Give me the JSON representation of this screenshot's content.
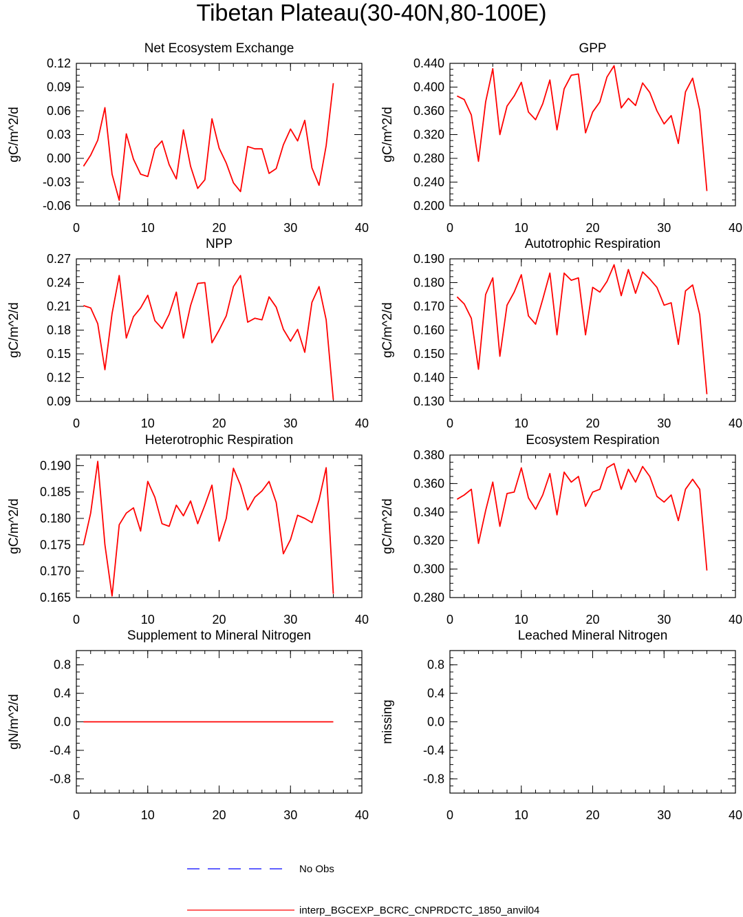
{
  "figure_title": "Tibetan Plateau(30-40N,80-100E)",
  "colors": {
    "model": "#ff0000",
    "obs": "#0000ff"
  },
  "legend": {
    "obs_label": "No Obs",
    "model_label": "interp_BGCEXP_BCRC_CNPRDCTC_1850_anvil04"
  },
  "chart_data": [
    {
      "type": "line",
      "title": "Net Ecosystem Exchange",
      "ylabel": "gC/m^2/d",
      "xlim": [
        0,
        40
      ],
      "ylim": [
        -0.06,
        0.12
      ],
      "xticks": [
        "0",
        "10",
        "20",
        "30",
        "40"
      ],
      "yticks": [
        "-0.06",
        "-0.03",
        "0.00",
        "0.03",
        "0.06",
        "0.09",
        "0.12"
      ],
      "x": [
        1,
        2,
        3,
        4,
        5,
        6,
        7,
        8,
        9,
        10,
        11,
        12,
        13,
        14,
        15,
        16,
        17,
        18,
        19,
        20,
        21,
        22,
        23,
        24,
        25,
        26,
        27,
        28,
        29,
        30,
        31,
        32,
        33,
        34,
        35,
        36
      ],
      "values": [
        -0.01,
        0.004,
        0.023,
        0.064,
        -0.02,
        -0.053,
        0.031,
        -0.001,
        -0.02,
        -0.023,
        0.012,
        0.022,
        -0.008,
        -0.026,
        0.036,
        -0.01,
        -0.038,
        -0.027,
        0.05,
        0.013,
        -0.006,
        -0.031,
        -0.042,
        0.015,
        0.012,
        0.012,
        -0.019,
        -0.013,
        0.017,
        0.037,
        0.022,
        0.048,
        -0.012,
        -0.034,
        0.016,
        0.095
      ]
    },
    {
      "type": "line",
      "title": "GPP",
      "ylabel": "gC/m^2/d",
      "xlim": [
        0,
        40
      ],
      "ylim": [
        0.2,
        0.44
      ],
      "xticks": [
        "0",
        "10",
        "20",
        "30",
        "40"
      ],
      "yticks": [
        "0.200",
        "0.240",
        "0.280",
        "0.320",
        "0.360",
        "0.400",
        "0.440"
      ],
      "x": [
        1,
        2,
        3,
        4,
        5,
        6,
        7,
        8,
        9,
        10,
        11,
        12,
        13,
        14,
        15,
        16,
        17,
        18,
        19,
        20,
        21,
        22,
        23,
        24,
        25,
        26,
        27,
        28,
        29,
        30,
        31,
        32,
        33,
        34,
        35,
        36
      ],
      "values": [
        0.385,
        0.379,
        0.353,
        0.275,
        0.375,
        0.431,
        0.32,
        0.368,
        0.385,
        0.408,
        0.358,
        0.345,
        0.372,
        0.412,
        0.328,
        0.397,
        0.42,
        0.422,
        0.323,
        0.358,
        0.375,
        0.417,
        0.436,
        0.365,
        0.381,
        0.369,
        0.407,
        0.391,
        0.36,
        0.338,
        0.352,
        0.305,
        0.392,
        0.415,
        0.361,
        0.225
      ]
    },
    {
      "type": "line",
      "title": "NPP",
      "ylabel": "gC/m^2/d",
      "xlim": [
        0,
        40
      ],
      "ylim": [
        0.09,
        0.27
      ],
      "xticks": [
        "0",
        "10",
        "20",
        "30",
        "40"
      ],
      "yticks": [
        "0.09",
        "0.12",
        "0.15",
        "0.18",
        "0.21",
        "0.24",
        "0.27"
      ],
      "x": [
        1,
        2,
        3,
        4,
        5,
        6,
        7,
        8,
        9,
        10,
        11,
        12,
        13,
        14,
        15,
        16,
        17,
        18,
        19,
        20,
        21,
        22,
        23,
        24,
        25,
        26,
        27,
        28,
        29,
        30,
        31,
        32,
        33,
        34,
        35,
        36
      ],
      "values": [
        0.211,
        0.208,
        0.188,
        0.13,
        0.201,
        0.249,
        0.17,
        0.197,
        0.208,
        0.224,
        0.192,
        0.182,
        0.2,
        0.228,
        0.17,
        0.211,
        0.239,
        0.24,
        0.164,
        0.18,
        0.198,
        0.235,
        0.249,
        0.19,
        0.195,
        0.193,
        0.222,
        0.209,
        0.181,
        0.166,
        0.181,
        0.152,
        0.215,
        0.235,
        0.193,
        0.092
      ]
    },
    {
      "type": "line",
      "title": "Autotrophic Respiration",
      "ylabel": "gC/m^2/d",
      "xlim": [
        0,
        40
      ],
      "ylim": [
        0.13,
        0.19
      ],
      "xticks": [
        "0",
        "10",
        "20",
        "30",
        "40"
      ],
      "yticks": [
        "0.130",
        "0.140",
        "0.150",
        "0.160",
        "0.170",
        "0.180",
        "0.190"
      ],
      "x": [
        1,
        2,
        3,
        4,
        5,
        6,
        7,
        8,
        9,
        10,
        11,
        12,
        13,
        14,
        15,
        16,
        17,
        18,
        19,
        20,
        21,
        22,
        23,
        24,
        25,
        26,
        27,
        28,
        29,
        30,
        31,
        32,
        33,
        34,
        35,
        36
      ],
      "values": [
        0.174,
        0.171,
        0.165,
        0.1435,
        0.175,
        0.182,
        0.149,
        0.1705,
        0.176,
        0.1833,
        0.166,
        0.1625,
        0.173,
        0.184,
        0.158,
        0.184,
        0.181,
        0.182,
        0.158,
        0.178,
        0.176,
        0.1805,
        0.1875,
        0.1745,
        0.1855,
        0.1755,
        0.1845,
        0.1815,
        0.178,
        0.1705,
        0.1715,
        0.154,
        0.1765,
        0.179,
        0.1665,
        0.133
      ]
    },
    {
      "type": "line",
      "title": "Heterotrophic Respiration",
      "ylabel": "gC/m^2/d",
      "xlim": [
        0,
        40
      ],
      "ylim": [
        0.165,
        0.192
      ],
      "xticks": [
        "0",
        "10",
        "20",
        "30",
        "40"
      ],
      "yticks": [
        "0.165",
        "0.170",
        "0.175",
        "0.180",
        "0.185",
        "0.190"
      ],
      "x": [
        1,
        2,
        3,
        4,
        5,
        6,
        7,
        8,
        9,
        10,
        11,
        12,
        13,
        14,
        15,
        16,
        17,
        18,
        19,
        20,
        21,
        22,
        23,
        24,
        25,
        26,
        27,
        28,
        29,
        30,
        31,
        32,
        33,
        34,
        35,
        36
      ],
      "values": [
        0.175,
        0.181,
        0.1908,
        0.175,
        0.1653,
        0.1788,
        0.181,
        0.182,
        0.1776,
        0.187,
        0.184,
        0.179,
        0.1785,
        0.1825,
        0.1805,
        0.1833,
        0.179,
        0.1825,
        0.1863,
        0.1757,
        0.18,
        0.1895,
        0.1863,
        0.1816,
        0.184,
        0.1852,
        0.187,
        0.183,
        0.1733,
        0.176,
        0.1806,
        0.18,
        0.1792,
        0.1835,
        0.1896,
        0.1657
      ]
    },
    {
      "type": "line",
      "title": "Ecosystem Respiration",
      "ylabel": "gC/m^2/d",
      "xlim": [
        0,
        40
      ],
      "ylim": [
        0.28,
        0.38
      ],
      "xticks": [
        "0",
        "10",
        "20",
        "30",
        "40"
      ],
      "yticks": [
        "0.280",
        "0.300",
        "0.320",
        "0.340",
        "0.360",
        "0.380"
      ],
      "x": [
        1,
        2,
        3,
        4,
        5,
        6,
        7,
        8,
        9,
        10,
        11,
        12,
        13,
        14,
        15,
        16,
        17,
        18,
        19,
        20,
        21,
        22,
        23,
        24,
        25,
        26,
        27,
        28,
        29,
        30,
        31,
        32,
        33,
        34,
        35,
        36
      ],
      "values": [
        0.349,
        0.352,
        0.356,
        0.318,
        0.341,
        0.361,
        0.33,
        0.353,
        0.354,
        0.371,
        0.35,
        0.342,
        0.352,
        0.367,
        0.338,
        0.368,
        0.361,
        0.365,
        0.344,
        0.354,
        0.356,
        0.371,
        0.374,
        0.356,
        0.37,
        0.361,
        0.372,
        0.365,
        0.351,
        0.347,
        0.352,
        0.334,
        0.356,
        0.363,
        0.356,
        0.299
      ]
    },
    {
      "type": "line",
      "title": "Supplement to Mineral Nitrogen",
      "ylabel": "gN/m^2/d",
      "xlim": [
        0,
        40
      ],
      "ylim": [
        -1,
        1
      ],
      "xticks": [
        "0",
        "10",
        "20",
        "30",
        "40"
      ],
      "yticks": [
        "-0.8",
        "-0.4",
        "0.0",
        "0.4",
        "0.8"
      ],
      "x": [
        1,
        2,
        3,
        4,
        5,
        6,
        7,
        8,
        9,
        10,
        11,
        12,
        13,
        14,
        15,
        16,
        17,
        18,
        19,
        20,
        21,
        22,
        23,
        24,
        25,
        26,
        27,
        28,
        29,
        30,
        31,
        32,
        33,
        34,
        35,
        36
      ],
      "values": [
        0,
        0,
        0,
        0,
        0,
        0,
        0,
        0,
        0,
        0,
        0,
        0,
        0,
        0,
        0,
        0,
        0,
        0,
        0,
        0,
        0,
        0,
        0,
        0,
        0,
        0,
        0,
        0,
        0,
        0,
        0,
        0,
        0,
        0,
        0,
        0
      ]
    },
    {
      "type": "line",
      "title": "Leached Mineral Nitrogen",
      "ylabel": "missing",
      "xlim": [
        0,
        40
      ],
      "ylim": [
        -1,
        1
      ],
      "xticks": [
        "0",
        "10",
        "20",
        "30",
        "40"
      ],
      "yticks": [
        "-0.8",
        "-0.4",
        "0.0",
        "0.4",
        "0.8"
      ],
      "x": [],
      "values": []
    }
  ]
}
